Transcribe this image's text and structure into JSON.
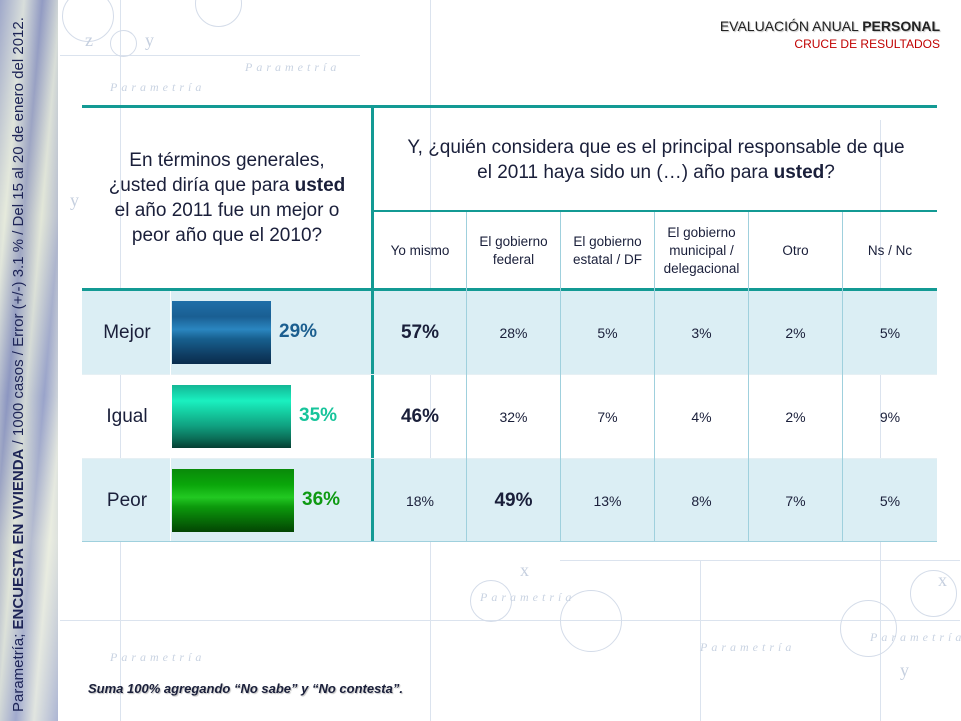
{
  "header": {
    "title_regular": "EVALUACIÓN ANUAL ",
    "title_bold": "PERSONAL",
    "subtitle": "CRUCE DE RESULTADOS"
  },
  "side_note": {
    "prefix": "Parametría; ",
    "bold": "ENCUESTA EN VIVIENDA",
    "suffix": " / 1000 casos / Error (+/-) 3.1 % / Del 15 al 20 de enero del 2012."
  },
  "watermark": {
    "brand": "Parametría",
    "letters": [
      "x",
      "y",
      "z"
    ]
  },
  "question_left": {
    "line1": "En términos generales,",
    "line2_pre": "¿usted diría que para ",
    "line2_bold": "usted",
    "line3": "el año 2011 fue un mejor o",
    "line4": "peor año que el 2010?"
  },
  "question_right": {
    "line1": "Y, ¿quién considera que es el principal responsable de que",
    "line2_pre": "el 2011 haya sido un (…) año para ",
    "line2_bold": "usted",
    "line2_post": "?"
  },
  "columns": [
    "Yo mismo",
    "El gobierno federal",
    "El gobierno estatal / DF",
    "El gobierno municipal / delegacional",
    "Otro",
    "Ns / Nc"
  ],
  "colors": {
    "teal_border": "#139a94",
    "band": "#dbeef4",
    "mejor": "#1b5e8f",
    "igual": "#17c49b",
    "peor": "#0e9a12",
    "accent_red": "#c00000"
  },
  "rows": [
    {
      "label": "Mejor",
      "percent": 29,
      "percent_label": "29%",
      "cells": [
        "57%",
        "28%",
        "5%",
        "3%",
        "2%",
        "5%"
      ],
      "bold_index": 0
    },
    {
      "label": "Igual",
      "percent": 35,
      "percent_label": "35%",
      "cells": [
        "46%",
        "32%",
        "7%",
        "4%",
        "2%",
        "9%"
      ],
      "bold_index": 0
    },
    {
      "label": "Peor",
      "percent": 36,
      "percent_label": "36%",
      "cells": [
        "18%",
        "49%",
        "13%",
        "8%",
        "7%",
        "5%"
      ],
      "bold_index": 1
    }
  ],
  "footnote": "Suma 100% agregando “No sabe” y “No contesta”."
}
